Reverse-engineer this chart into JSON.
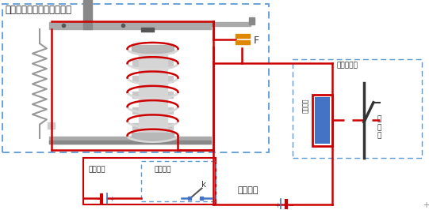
{
  "bg_color": "#ffffff",
  "relay_box_label": "中间继电器（出口继电器）",
  "protection_circuit_label": "保护回路",
  "protection_device_label": "保护装置",
  "control_circuit_label": "控制回路",
  "breaker_mechanism_label": "断路器机构",
  "trip_coil_label": "分闸线圈",
  "breaker_label": "断\n路\n器",
  "F_label": "F",
  "k_label": "k",
  "dashed_box_color": "#5b9bd5",
  "circuit_line_color": "#cc0000",
  "spring_color": "#999999",
  "coil_color": "#cc0000",
  "frame_color": "#aaaaaa",
  "frame_dark": "#888888",
  "breaker_color": "#333333",
  "text_color": "#222222",
  "minus_color": "#cc0000",
  "plus_color": "#4472c4",
  "trip_coil_fill": "#4472c4",
  "orange_contact": "#dd8800"
}
